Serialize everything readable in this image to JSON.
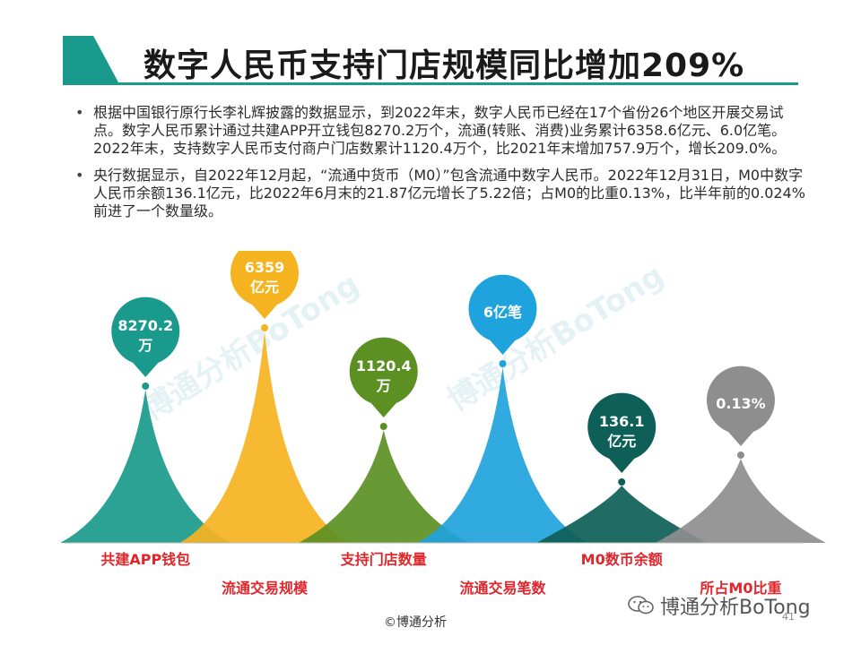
{
  "title": "数字人民币支持门店规模同比增加209%",
  "bullets": [
    "根据中国银行原行长李礼辉披露的数据显示，到2022年末，数字人民币已经在17个省份26个地区开展交易试点。数字人民币累计通过共建APP开立钱包8270.2万个，流通(转账、消费)业务累计6358.6亿元、6.0亿笔。2022年末，支持数字人民币支付商户门店数累计1120.4万个，比2021年末增加757.9万个，增长209.0%。",
    "央行数据显示，自2022年12月起，“流通中货币（M0）”包含流通中数字人民币。2022年12月31日，M0中数字人民币余额136.1亿元，比2022年6月末的21.87亿元增长了5.22倍；占M0的比重0.13%，比半年前的0.024%前进了一个数量级。"
  ],
  "watermark": "博通分析BoTong",
  "footer": "©博通分析",
  "wechat_label": "博通分析BoTong",
  "page_number": "41",
  "colors": {
    "accent": "#1a9a8c",
    "label_red": "#e0262b"
  },
  "chart_data": {
    "type": "infographic-peaks",
    "items": [
      {
        "category": "共建APP钱包",
        "value_label": "8270.2万",
        "bubble_lines": [
          "8270.2",
          "万"
        ],
        "color": "#1a9a8c",
        "rank": 3
      },
      {
        "category": "流通交易规模",
        "value_label": "6359亿元",
        "bubble_lines": [
          "6359",
          "亿元"
        ],
        "color": "#f5b31f",
        "rank": 1
      },
      {
        "category": "支持门店数量",
        "value_label": "1120.4万",
        "bubble_lines": [
          "1120.4",
          "万"
        ],
        "color": "#5c9023",
        "rank": 4
      },
      {
        "category": "流通交易笔数",
        "value_label": "6亿笔",
        "bubble_lines": [
          "6亿笔"
        ],
        "color": "#1fa3dc",
        "rank": 2
      },
      {
        "category": "M0数币余额",
        "value_label": "136.1亿元",
        "bubble_lines": [
          "136.1",
          "亿元"
        ],
        "color": "#0d5f57",
        "rank": 6
      },
      {
        "category": "所占M0比重",
        "value_label": "0.13%",
        "bubble_lines": [
          "0.13%"
        ],
        "color": "#8e8e8e",
        "rank": 5
      }
    ]
  }
}
